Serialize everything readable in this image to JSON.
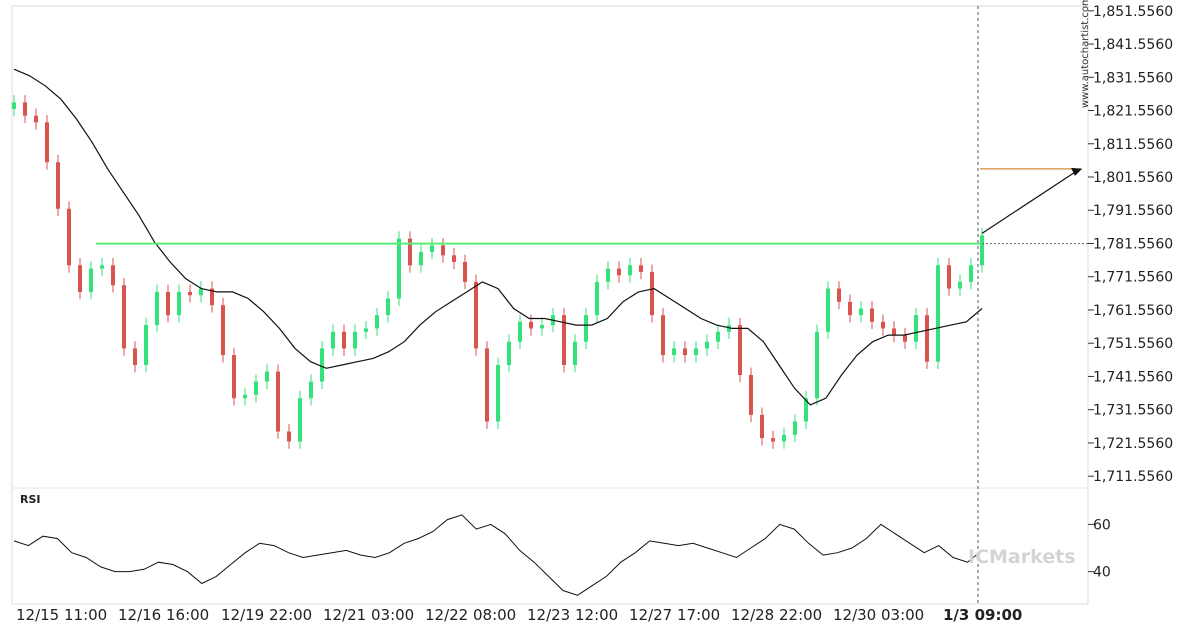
{
  "watermark_vertical": "www.autochartist.com",
  "watermark_brand": "ICMarkets",
  "chart_data": [
    {
      "type": "candlestick",
      "title": "",
      "y_ticks": [
        "1,851.5560",
        "1,841.5560",
        "1,831.5560",
        "1,821.5560",
        "1,811.5560",
        "1,801.5560",
        "1,791.5560",
        "1,781.5560",
        "1,771.5560",
        "1,761.5560",
        "1,751.5560",
        "1,741.5560",
        "1,731.5560",
        "1,721.5560",
        "1,711.5560"
      ],
      "ylim": [
        1708,
        1853
      ],
      "x_ticks": [
        "12/15 11:00",
        "12/16 16:00",
        "12/19 22:00",
        "12/21 03:00",
        "12/22 08:00",
        "12/23 12:00",
        "12/27 17:00",
        "12/28 22:00",
        "12/30 03:00",
        "1/3 09:00"
      ],
      "x_ticks_bold_index": 9,
      "colors": {
        "up": "#33e27a",
        "down": "#d9534f",
        "moving_average": "#111111",
        "resistance_line": "#55ee77",
        "projection_line": "#d08c3c"
      },
      "resistance_level": 1781.5,
      "projection_target": 1804.0,
      "moving_average": [
        1834,
        1832,
        1829,
        1825,
        1819,
        1812,
        1804,
        1797,
        1790,
        1782,
        1776,
        1771,
        1768,
        1767,
        1767,
        1765,
        1761,
        1756,
        1750,
        1746,
        1744,
        1745,
        1746,
        1747,
        1749,
        1752,
        1757,
        1761,
        1764,
        1767,
        1770,
        1768,
        1762,
        1759,
        1759,
        1758,
        1757,
        1757,
        1759,
        1764,
        1767,
        1768,
        1765,
        1762,
        1759,
        1757,
        1756,
        1756,
        1752,
        1745,
        1738,
        1733,
        1735,
        1742,
        1748,
        1752,
        1754,
        1754,
        1755,
        1756,
        1757,
        1758,
        1762
      ],
      "candles": [
        [
          1822,
          1824
        ],
        [
          1824,
          1820
        ],
        [
          1820,
          1818
        ],
        [
          1818,
          1806
        ],
        [
          1806,
          1792
        ],
        [
          1792,
          1775
        ],
        [
          1775,
          1767
        ],
        [
          1767,
          1774
        ],
        [
          1774,
          1775
        ],
        [
          1775,
          1769
        ],
        [
          1769,
          1750
        ],
        [
          1750,
          1745
        ],
        [
          1745,
          1757
        ],
        [
          1757,
          1767
        ],
        [
          1767,
          1760
        ],
        [
          1760,
          1767
        ],
        [
          1767,
          1766
        ],
        [
          1766,
          1768
        ],
        [
          1768,
          1763
        ],
        [
          1763,
          1748
        ],
        [
          1748,
          1735
        ],
        [
          1735,
          1736
        ],
        [
          1736,
          1740
        ],
        [
          1740,
          1743
        ],
        [
          1743,
          1725
        ],
        [
          1725,
          1722
        ],
        [
          1722,
          1735
        ],
        [
          1735,
          1740
        ],
        [
          1740,
          1750
        ],
        [
          1750,
          1755
        ],
        [
          1755,
          1750
        ],
        [
          1750,
          1755
        ],
        [
          1755,
          1756
        ],
        [
          1756,
          1760
        ],
        [
          1760,
          1765
        ],
        [
          1765,
          1783
        ],
        [
          1783,
          1775
        ],
        [
          1775,
          1779
        ],
        [
          1779,
          1781
        ],
        [
          1781,
          1778
        ],
        [
          1778,
          1776
        ],
        [
          1776,
          1770
        ],
        [
          1770,
          1750
        ],
        [
          1750,
          1728
        ],
        [
          1728,
          1745
        ],
        [
          1745,
          1752
        ],
        [
          1752,
          1758
        ],
        [
          1758,
          1756
        ],
        [
          1756,
          1757
        ],
        [
          1757,
          1760
        ],
        [
          1760,
          1745
        ],
        [
          1745,
          1752
        ],
        [
          1752,
          1760
        ],
        [
          1760,
          1770
        ],
        [
          1770,
          1774
        ],
        [
          1774,
          1772
        ],
        [
          1772,
          1775
        ],
        [
          1775,
          1773
        ],
        [
          1773,
          1760
        ],
        [
          1760,
          1748
        ],
        [
          1748,
          1750
        ],
        [
          1750,
          1748
        ],
        [
          1748,
          1750
        ],
        [
          1750,
          1752
        ],
        [
          1752,
          1755
        ],
        [
          1755,
          1757
        ],
        [
          1757,
          1742
        ],
        [
          1742,
          1730
        ],
        [
          1730,
          1723
        ],
        [
          1723,
          1722
        ],
        [
          1722,
          1724
        ],
        [
          1724,
          1728
        ],
        [
          1728,
          1735
        ],
        [
          1735,
          1755
        ],
        [
          1755,
          1768
        ],
        [
          1768,
          1764
        ],
        [
          1764,
          1760
        ],
        [
          1760,
          1762
        ],
        [
          1762,
          1758
        ],
        [
          1758,
          1756
        ],
        [
          1756,
          1754
        ],
        [
          1754,
          1752
        ],
        [
          1752,
          1760
        ],
        [
          1760,
          1746
        ],
        [
          1746,
          1775
        ],
        [
          1775,
          1768
        ],
        [
          1768,
          1770
        ],
        [
          1770,
          1775
        ],
        [
          1775,
          1784
        ]
      ]
    },
    {
      "type": "line",
      "title": "RSI",
      "y_ticks": [
        "60",
        "40"
      ],
      "ylim": [
        28,
        72
      ],
      "series": [
        {
          "values": [
            53,
            51,
            55,
            54,
            48,
            46,
            42,
            40,
            40,
            41,
            44,
            43,
            40,
            35,
            38,
            43,
            48,
            52,
            51,
            48,
            46,
            47,
            48,
            49,
            47,
            46,
            48,
            52,
            54,
            57,
            62,
            64,
            58,
            60,
            56,
            49,
            44,
            38,
            32,
            30,
            34,
            38,
            44,
            48,
            53,
            52,
            51,
            52,
            50,
            48,
            46,
            50,
            54,
            60,
            58,
            52,
            47,
            48,
            50,
            54,
            60,
            56,
            52,
            48,
            51,
            46,
            44,
            49
          ]
        }
      ]
    }
  ]
}
